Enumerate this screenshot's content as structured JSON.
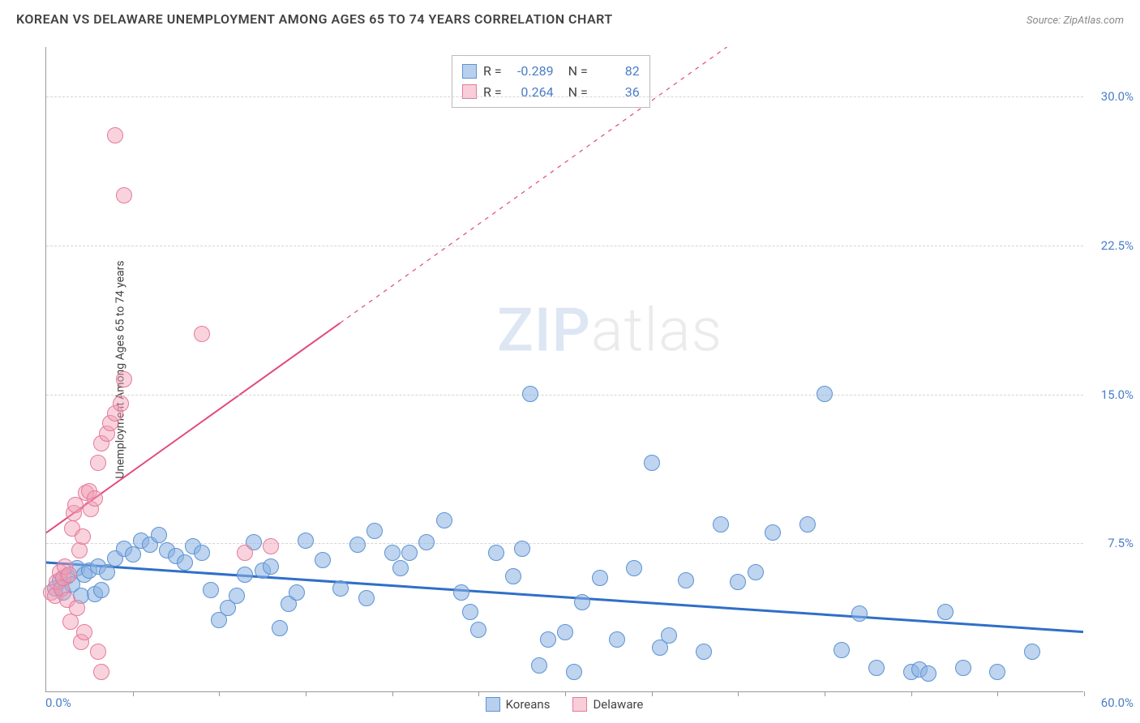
{
  "title": "KOREAN VS DELAWARE UNEMPLOYMENT AMONG AGES 65 TO 74 YEARS CORRELATION CHART",
  "source_prefix": "Source: ",
  "source_name": "ZipAtlas.com",
  "ylabel": "Unemployment Among Ages 65 to 74 years",
  "watermark_bold": "ZIP",
  "watermark_light": "atlas",
  "chart": {
    "type": "scatter",
    "xlim": [
      0,
      60
    ],
    "ylim": [
      0,
      32.5
    ],
    "x_tick_min": 0,
    "x_tick_max": 60,
    "x_labels": [
      "0.0%",
      "60.0%"
    ],
    "y_ticks": [
      7.5,
      15.0,
      22.5,
      30.0
    ],
    "y_tick_labels": [
      "7.5%",
      "15.0%",
      "22.5%",
      "30.0%"
    ],
    "x_minor_step": 5,
    "background_color": "#ffffff",
    "grid_color": "#d5d5d5",
    "axis_color": "#999999",
    "tick_label_color": "#4a7ec9",
    "marker_radius": 10,
    "series": [
      {
        "name": "Koreans",
        "fill": "rgba(137,177,226,0.55)",
        "stroke": "#5c93d2",
        "class": "series-blue",
        "R": "-0.289",
        "N": "82",
        "trend": {
          "x1": 0,
          "y1": 6.5,
          "x2": 60,
          "y2": 3.0,
          "stroke": "#2f6fc8",
          "width": 3,
          "dash_from_x": null
        },
        "points": [
          [
            0.5,
            5.2
          ],
          [
            0.8,
            5.6
          ],
          [
            1.0,
            5.0
          ],
          [
            1.2,
            5.8
          ],
          [
            1.5,
            5.4
          ],
          [
            1.8,
            6.2
          ],
          [
            2.0,
            4.8
          ],
          [
            2.2,
            5.9
          ],
          [
            2.5,
            6.1
          ],
          [
            2.8,
            4.9
          ],
          [
            3.0,
            6.3
          ],
          [
            3.2,
            5.1
          ],
          [
            3.5,
            6.0
          ],
          [
            4.0,
            6.7
          ],
          [
            4.5,
            7.2
          ],
          [
            5.0,
            6.9
          ],
          [
            5.5,
            7.6
          ],
          [
            6.0,
            7.4
          ],
          [
            6.5,
            7.9
          ],
          [
            7.0,
            7.1
          ],
          [
            7.5,
            6.8
          ],
          [
            8.0,
            6.5
          ],
          [
            8.5,
            7.3
          ],
          [
            9.0,
            7.0
          ],
          [
            9.5,
            5.1
          ],
          [
            10.0,
            3.6
          ],
          [
            10.5,
            4.2
          ],
          [
            11.0,
            4.8
          ],
          [
            11.5,
            5.9
          ],
          [
            12.0,
            7.5
          ],
          [
            12.5,
            6.1
          ],
          [
            13.0,
            6.3
          ],
          [
            13.5,
            3.2
          ],
          [
            14.0,
            4.4
          ],
          [
            14.5,
            5.0
          ],
          [
            15.0,
            7.6
          ],
          [
            16.0,
            6.6
          ],
          [
            17.0,
            5.2
          ],
          [
            18.0,
            7.4
          ],
          [
            18.5,
            4.7
          ],
          [
            19.0,
            8.1
          ],
          [
            20.0,
            7.0
          ],
          [
            20.5,
            6.2
          ],
          [
            21.0,
            7.0
          ],
          [
            22.0,
            7.5
          ],
          [
            23.0,
            8.6
          ],
          [
            24.0,
            5.0
          ],
          [
            24.5,
            4.0
          ],
          [
            25.0,
            3.1
          ],
          [
            26.0,
            7.0
          ],
          [
            27.0,
            5.8
          ],
          [
            27.5,
            7.2
          ],
          [
            28.0,
            15.0
          ],
          [
            28.5,
            1.3
          ],
          [
            29.0,
            2.6
          ],
          [
            30.0,
            3.0
          ],
          [
            30.5,
            1.0
          ],
          [
            31.0,
            4.5
          ],
          [
            32.0,
            5.7
          ],
          [
            33.0,
            2.6
          ],
          [
            34.0,
            6.2
          ],
          [
            35.0,
            11.5
          ],
          [
            35.5,
            2.2
          ],
          [
            36.0,
            2.8
          ],
          [
            37.0,
            5.6
          ],
          [
            38.0,
            2.0
          ],
          [
            39.0,
            8.4
          ],
          [
            40.0,
            5.5
          ],
          [
            41.0,
            6.0
          ],
          [
            42.0,
            8.0
          ],
          [
            44.0,
            8.4
          ],
          [
            45.0,
            15.0
          ],
          [
            46.0,
            2.1
          ],
          [
            47.0,
            3.9
          ],
          [
            48.0,
            1.2
          ],
          [
            50.0,
            1.0
          ],
          [
            50.5,
            1.1
          ],
          [
            51.0,
            0.9
          ],
          [
            52.0,
            4.0
          ],
          [
            53.0,
            1.2
          ],
          [
            55.0,
            1.0
          ],
          [
            57.0,
            2.0
          ]
        ]
      },
      {
        "name": "Delaware",
        "fill": "rgba(240,158,180,0.45)",
        "stroke": "#e67a9a",
        "class": "series-pink",
        "R": "0.264",
        "N": "36",
        "trend": {
          "x1": 0,
          "y1": 8.0,
          "x2": 45,
          "y2": 36.0,
          "stroke": "#e24a7a",
          "width": 2,
          "dash_from_x": 17
        },
        "points": [
          [
            0.3,
            5.0
          ],
          [
            0.5,
            4.8
          ],
          [
            0.6,
            5.5
          ],
          [
            0.8,
            6.0
          ],
          [
            0.9,
            5.2
          ],
          [
            1.0,
            5.7
          ],
          [
            1.1,
            6.3
          ],
          [
            1.2,
            4.6
          ],
          [
            1.3,
            5.9
          ],
          [
            1.4,
            3.5
          ],
          [
            1.5,
            8.2
          ],
          [
            1.6,
            9.0
          ],
          [
            1.7,
            9.4
          ],
          [
            1.8,
            4.2
          ],
          [
            1.9,
            7.1
          ],
          [
            2.0,
            2.5
          ],
          [
            2.1,
            7.8
          ],
          [
            2.2,
            3.0
          ],
          [
            2.3,
            10.0
          ],
          [
            2.5,
            10.1
          ],
          [
            2.6,
            9.2
          ],
          [
            2.8,
            9.7
          ],
          [
            3.0,
            11.5
          ],
          [
            3.2,
            12.5
          ],
          [
            3.5,
            13.0
          ],
          [
            3.7,
            13.5
          ],
          [
            4.0,
            14.0
          ],
          [
            4.3,
            14.5
          ],
          [
            4.5,
            15.7
          ],
          [
            3.0,
            2.0
          ],
          [
            3.2,
            1.0
          ],
          [
            4.0,
            28.0
          ],
          [
            4.5,
            25.0
          ],
          [
            11.5,
            7.0
          ],
          [
            13.0,
            7.3
          ],
          [
            9.0,
            18.0
          ]
        ]
      }
    ]
  },
  "stat_legend": {
    "rows": [
      {
        "swatch": "sw-blue",
        "R_label": "R =",
        "R": "-0.289",
        "N_label": "N =",
        "N": "82"
      },
      {
        "swatch": "sw-pink",
        "R_label": "R =",
        "R": "0.264",
        "N_label": "N =",
        "N": "36"
      }
    ]
  },
  "bottom_legend": [
    {
      "swatch": "sw-blue",
      "label": "Koreans"
    },
    {
      "swatch": "sw-pink",
      "label": "Delaware"
    }
  ]
}
